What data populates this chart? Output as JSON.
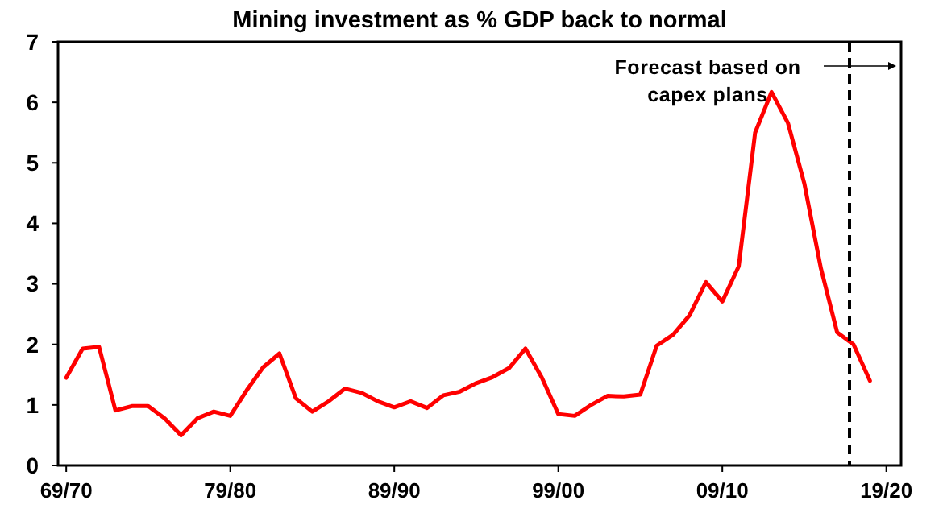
{
  "chart_data": {
    "type": "line",
    "title": "Mining investment as % GDP back to normal",
    "categories": [
      "69/70",
      null,
      null,
      null,
      null,
      null,
      null,
      null,
      null,
      null,
      "79/80",
      null,
      null,
      null,
      null,
      null,
      null,
      null,
      null,
      null,
      "89/90",
      null,
      null,
      null,
      null,
      null,
      null,
      null,
      null,
      null,
      "99/00",
      null,
      null,
      null,
      null,
      null,
      null,
      null,
      null,
      null,
      "09/10",
      null,
      null,
      null,
      null,
      null,
      null,
      null,
      null,
      null,
      "19/20"
    ],
    "series": [
      {
        "color": "#ff0000",
        "values": [
          1.45,
          1.93,
          1.96,
          0.91,
          0.98,
          0.98,
          0.78,
          0.5,
          0.78,
          0.89,
          0.82,
          1.24,
          1.62,
          1.85,
          1.11,
          0.89,
          1.06,
          1.27,
          1.2,
          1.06,
          0.96,
          1.06,
          0.95,
          1.16,
          1.22,
          1.36,
          1.46,
          1.61,
          1.93,
          1.45,
          0.85,
          0.82,
          1.0,
          1.15,
          1.14,
          1.17,
          1.98,
          2.16,
          2.48,
          3.03,
          2.71,
          3.29,
          5.5,
          6.17,
          5.66,
          4.66,
          3.27,
          2.2,
          2.0,
          1.4,
          null
        ]
      }
    ],
    "ylim": [
      0,
      7
    ],
    "yticks": [
      0,
      1,
      2,
      3,
      4,
      5,
      6,
      7
    ],
    "annotations": [
      "Forecast based on\ncapex plans"
    ],
    "grid": false,
    "marker": "none",
    "line_style": "solid"
  }
}
